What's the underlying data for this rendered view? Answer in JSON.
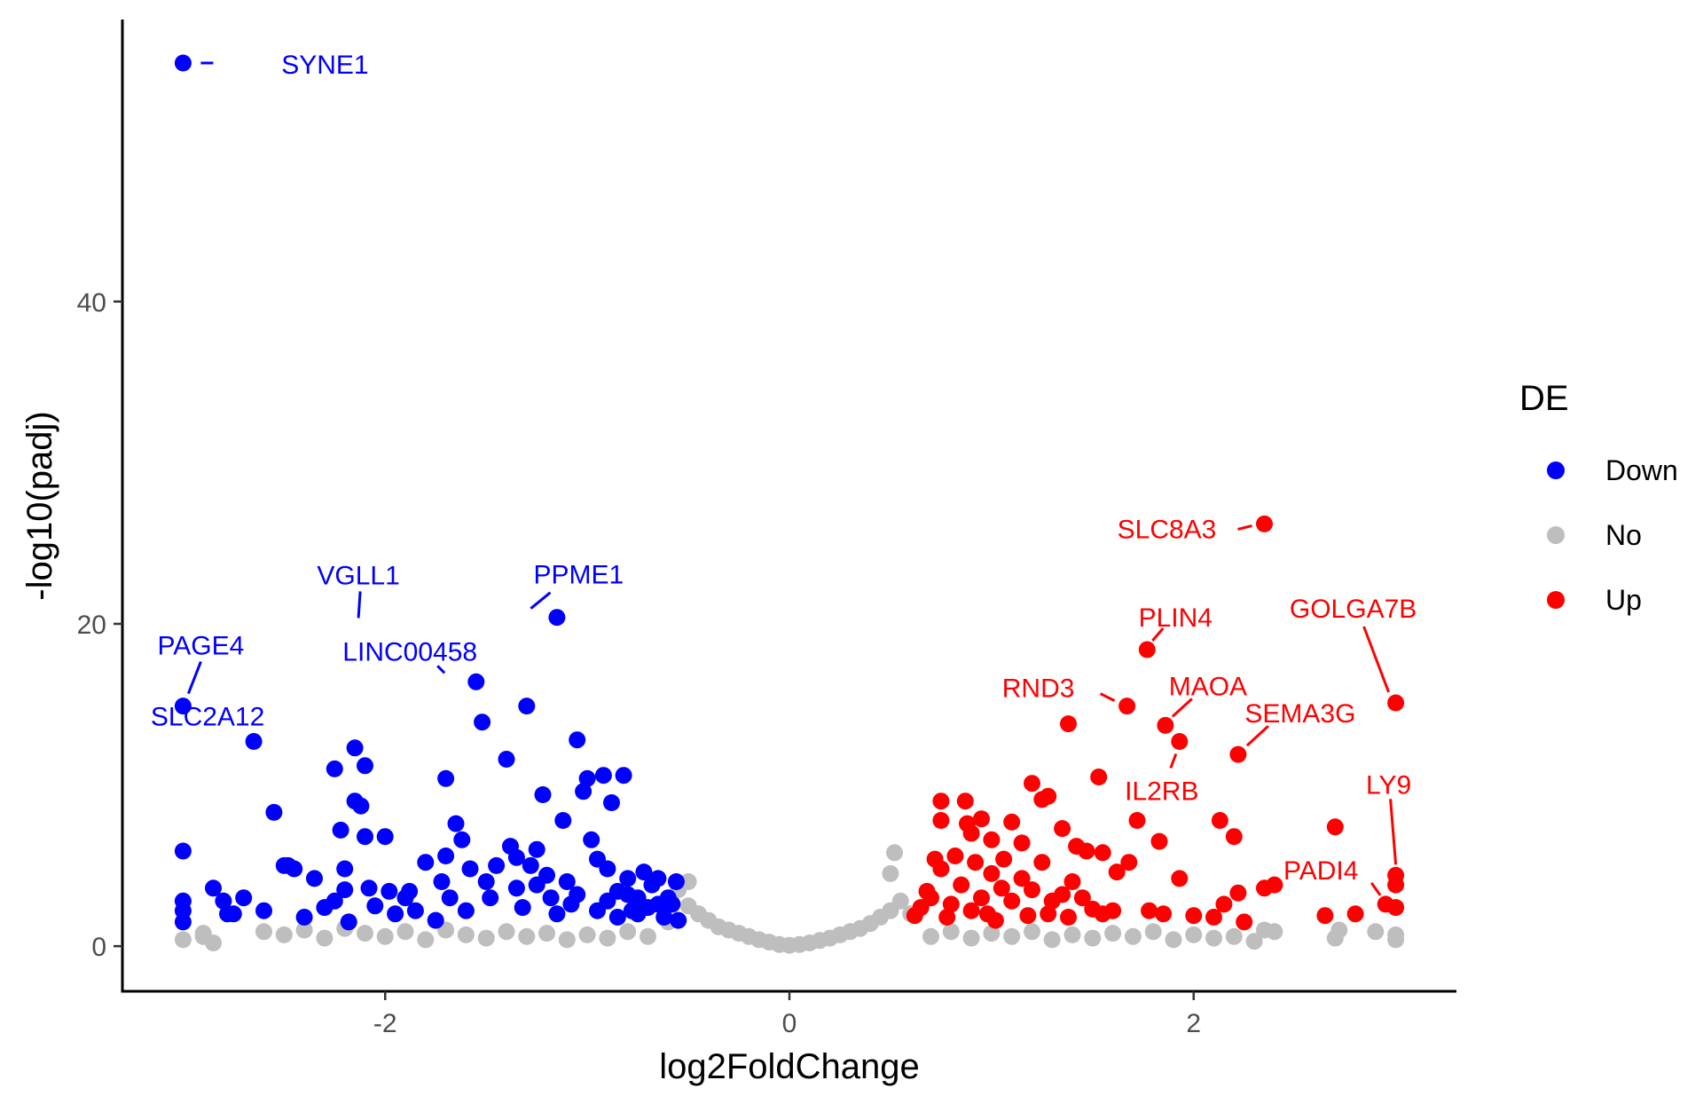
{
  "chart_data": {
    "type": "scatter",
    "xlabel": "log2FoldChange",
    "ylabel": "-log10(padj)",
    "xlim": [
      -3.3,
      3.3
    ],
    "ylim": [
      -2.8,
      57.5
    ],
    "x_ticks": [
      {
        "value": -2,
        "label": "-2"
      },
      {
        "value": 0,
        "label": "0"
      },
      {
        "value": 2,
        "label": "2"
      }
    ],
    "y_ticks": [
      {
        "value": 0,
        "label": "0"
      },
      {
        "value": 20,
        "label": "20"
      },
      {
        "value": 40,
        "label": "40"
      }
    ],
    "grid": false,
    "legend": {
      "title": "DE",
      "position": "right",
      "items": [
        {
          "name": "Down",
          "color": "#0000ff"
        },
        {
          "name": "No",
          "color": "#bebebe"
        },
        {
          "name": "Up",
          "color": "#ff0000"
        }
      ]
    },
    "series": [
      {
        "name": "No",
        "color": "#bebebe",
        "points": [
          [
            -3.0,
            0.4
          ],
          [
            -2.9,
            0.6
          ],
          [
            -2.9,
            0.8
          ],
          [
            -2.85,
            0.2
          ],
          [
            -2.6,
            0.9
          ],
          [
            -2.5,
            0.7
          ],
          [
            -2.4,
            1.0
          ],
          [
            -2.3,
            0.5
          ],
          [
            -2.2,
            1.1
          ],
          [
            -2.1,
            0.8
          ],
          [
            -2.0,
            0.6
          ],
          [
            -1.9,
            0.9
          ],
          [
            -1.8,
            0.4
          ],
          [
            -1.7,
            1.0
          ],
          [
            -1.6,
            0.7
          ],
          [
            -1.5,
            0.5
          ],
          [
            -1.4,
            0.9
          ],
          [
            -1.3,
            0.6
          ],
          [
            -1.2,
            0.8
          ],
          [
            -1.1,
            0.4
          ],
          [
            -1.0,
            0.7
          ],
          [
            -0.9,
            0.5
          ],
          [
            -0.8,
            0.9
          ],
          [
            -0.7,
            0.6
          ],
          [
            -0.6,
            1.5
          ],
          [
            -0.55,
            3.5
          ],
          [
            -0.5,
            4.0
          ],
          [
            -0.5,
            2.5
          ],
          [
            -0.45,
            2.0
          ],
          [
            -0.4,
            1.6
          ],
          [
            -0.35,
            1.2
          ],
          [
            -0.3,
            1.0
          ],
          [
            -0.25,
            0.8
          ],
          [
            -0.2,
            0.6
          ],
          [
            -0.15,
            0.4
          ],
          [
            -0.1,
            0.25
          ],
          [
            -0.05,
            0.1
          ],
          [
            0.0,
            0.05
          ],
          [
            0.05,
            0.1
          ],
          [
            0.1,
            0.2
          ],
          [
            0.15,
            0.35
          ],
          [
            0.2,
            0.5
          ],
          [
            0.25,
            0.7
          ],
          [
            0.3,
            0.9
          ],
          [
            0.35,
            1.1
          ],
          [
            0.4,
            1.4
          ],
          [
            0.45,
            1.8
          ],
          [
            0.5,
            2.2
          ],
          [
            0.5,
            4.5
          ],
          [
            0.52,
            5.8
          ],
          [
            0.55,
            2.8
          ],
          [
            0.6,
            2.0
          ],
          [
            0.7,
            0.6
          ],
          [
            0.8,
            0.9
          ],
          [
            0.9,
            0.5
          ],
          [
            1.0,
            0.8
          ],
          [
            1.1,
            0.6
          ],
          [
            1.2,
            0.9
          ],
          [
            1.3,
            0.4
          ],
          [
            1.4,
            0.7
          ],
          [
            1.5,
            0.5
          ],
          [
            1.6,
            0.8
          ],
          [
            1.7,
            0.6
          ],
          [
            1.8,
            0.9
          ],
          [
            1.9,
            0.4
          ],
          [
            2.0,
            0.7
          ],
          [
            2.1,
            0.5
          ],
          [
            2.2,
            0.6
          ],
          [
            2.3,
            0.3
          ],
          [
            2.35,
            1.0
          ],
          [
            2.4,
            0.9
          ],
          [
            2.7,
            0.5
          ],
          [
            2.72,
            1.0
          ],
          [
            2.9,
            0.9
          ],
          [
            3.0,
            0.4
          ],
          [
            3.0,
            0.7
          ]
        ]
      },
      {
        "name": "Down",
        "color": "#0000ff",
        "points": [
          [
            -3.0,
            54.8
          ],
          [
            -3.0,
            14.9
          ],
          [
            -3.0,
            5.9
          ],
          [
            -3.0,
            2.8
          ],
          [
            -3.0,
            2.2
          ],
          [
            -3.0,
            1.5
          ],
          [
            -2.85,
            3.6
          ],
          [
            -2.8,
            2.8
          ],
          [
            -2.78,
            2.0
          ],
          [
            -2.75,
            2.0
          ],
          [
            -2.7,
            3.0
          ],
          [
            -2.65,
            12.7
          ],
          [
            -2.6,
            2.2
          ],
          [
            -2.55,
            8.3
          ],
          [
            -2.5,
            5.0
          ],
          [
            -2.48,
            5.0
          ],
          [
            -2.45,
            4.8
          ],
          [
            -2.4,
            1.8
          ],
          [
            -2.35,
            4.2
          ],
          [
            -2.3,
            2.4
          ],
          [
            -2.25,
            11.0
          ],
          [
            -2.25,
            2.8
          ],
          [
            -2.22,
            7.2
          ],
          [
            -2.2,
            3.5
          ],
          [
            -2.2,
            4.8
          ],
          [
            -2.18,
            1.5
          ],
          [
            -2.15,
            12.3
          ],
          [
            -2.15,
            9.0
          ],
          [
            -2.12,
            8.7
          ],
          [
            -2.1,
            11.2
          ],
          [
            -2.1,
            6.8
          ],
          [
            -2.08,
            3.6
          ],
          [
            -2.05,
            2.5
          ],
          [
            -2.0,
            6.8
          ],
          [
            -1.98,
            3.4
          ],
          [
            -1.95,
            2.0
          ],
          [
            -1.9,
            3.0
          ],
          [
            -1.88,
            3.4
          ],
          [
            -1.85,
            2.2
          ],
          [
            -1.8,
            5.2
          ],
          [
            -1.75,
            1.6
          ],
          [
            -1.72,
            4.0
          ],
          [
            -1.7,
            10.4
          ],
          [
            -1.7,
            5.6
          ],
          [
            -1.68,
            3.0
          ],
          [
            -1.65,
            7.6
          ],
          [
            -1.62,
            6.6
          ],
          [
            -1.6,
            2.2
          ],
          [
            -1.58,
            4.8
          ],
          [
            -1.55,
            16.4
          ],
          [
            -1.52,
            13.9
          ],
          [
            -1.5,
            4.0
          ],
          [
            -1.48,
            3.0
          ],
          [
            -1.45,
            5.0
          ],
          [
            -1.4,
            11.6
          ],
          [
            -1.38,
            6.2
          ],
          [
            -1.35,
            3.6
          ],
          [
            -1.32,
            2.4
          ],
          [
            -1.3,
            14.9
          ],
          [
            -1.28,
            5.0
          ],
          [
            -1.25,
            6.0
          ],
          [
            -1.22,
            9.4
          ],
          [
            -1.2,
            4.4
          ],
          [
            -1.18,
            3.0
          ],
          [
            -1.15,
            20.4
          ],
          [
            -1.12,
            7.8
          ],
          [
            -1.1,
            4.0
          ],
          [
            -1.08,
            2.6
          ],
          [
            -1.05,
            12.8
          ],
          [
            -1.02,
            9.6
          ],
          [
            -1.0,
            10.4
          ],
          [
            -0.98,
            6.6
          ],
          [
            -0.95,
            5.4
          ],
          [
            -0.92,
            10.6
          ],
          [
            -0.9,
            2.8
          ],
          [
            -0.88,
            8.9
          ],
          [
            -0.85,
            3.4
          ],
          [
            -0.82,
            10.6
          ],
          [
            -0.8,
            4.2
          ],
          [
            -0.78,
            2.2
          ],
          [
            -0.75,
            3.0
          ],
          [
            -0.72,
            4.6
          ],
          [
            -0.7,
            2.4
          ],
          [
            -0.68,
            3.8
          ],
          [
            -0.65,
            4.2
          ],
          [
            -0.62,
            1.8
          ],
          [
            -0.6,
            3.0
          ],
          [
            -0.58,
            2.6
          ],
          [
            -0.56,
            4.0
          ],
          [
            -0.55,
            1.6
          ],
          [
            -1.35,
            5.5
          ],
          [
            -1.25,
            3.8
          ],
          [
            -1.15,
            2.0
          ],
          [
            -1.05,
            3.2
          ],
          [
            -0.95,
            2.2
          ],
          [
            -0.85,
            1.8
          ],
          [
            -0.75,
            2.0
          ],
          [
            -0.65,
            2.6
          ],
          [
            -0.9,
            4.8
          ],
          [
            -0.8,
            3.2
          ]
        ]
      },
      {
        "name": "Up",
        "color": "#ff0000",
        "points": [
          [
            2.35,
            26.2
          ],
          [
            1.77,
            18.4
          ],
          [
            3.0,
            15.1
          ],
          [
            1.67,
            14.9
          ],
          [
            1.38,
            13.8
          ],
          [
            1.86,
            13.7
          ],
          [
            1.93,
            12.7
          ],
          [
            2.22,
            11.9
          ],
          [
            1.53,
            10.5
          ],
          [
            1.2,
            10.1
          ],
          [
            1.25,
            9.1
          ],
          [
            0.75,
            9.0
          ],
          [
            0.87,
            9.0
          ],
          [
            1.28,
            9.3
          ],
          [
            0.95,
            7.9
          ],
          [
            1.1,
            7.7
          ],
          [
            0.75,
            7.8
          ],
          [
            0.88,
            7.6
          ],
          [
            1.35,
            7.3
          ],
          [
            2.13,
            7.8
          ],
          [
            1.72,
            7.8
          ],
          [
            2.7,
            7.4
          ],
          [
            2.2,
            6.8
          ],
          [
            1.83,
            6.5
          ],
          [
            0.9,
            7.0
          ],
          [
            1.0,
            6.6
          ],
          [
            1.15,
            6.4
          ],
          [
            1.42,
            6.2
          ],
          [
            1.47,
            5.9
          ],
          [
            1.06,
            5.4
          ],
          [
            1.25,
            5.2
          ],
          [
            0.82,
            5.6
          ],
          [
            0.92,
            5.2
          ],
          [
            1.62,
            4.6
          ],
          [
            1.55,
            5.8
          ],
          [
            1.68,
            5.2
          ],
          [
            1.93,
            4.2
          ],
          [
            2.4,
            3.8
          ],
          [
            2.35,
            3.6
          ],
          [
            3.0,
            4.4
          ],
          [
            3.0,
            3.8
          ],
          [
            2.95,
            2.6
          ],
          [
            3.0,
            2.4
          ],
          [
            2.8,
            2.0
          ],
          [
            2.65,
            1.9
          ],
          [
            2.25,
            1.5
          ],
          [
            2.15,
            2.6
          ],
          [
            2.1,
            1.8
          ],
          [
            2.0,
            1.9
          ],
          [
            1.85,
            2.0
          ],
          [
            1.78,
            2.2
          ],
          [
            1.6,
            2.2
          ],
          [
            1.55,
            2.0
          ],
          [
            1.5,
            2.3
          ],
          [
            1.45,
            3.0
          ],
          [
            1.4,
            4.0
          ],
          [
            1.35,
            3.2
          ],
          [
            1.3,
            2.8
          ],
          [
            1.2,
            3.5
          ],
          [
            1.15,
            4.2
          ],
          [
            1.1,
            2.8
          ],
          [
            1.05,
            3.6
          ],
          [
            1.0,
            4.5
          ],
          [
            0.95,
            3.0
          ],
          [
            0.9,
            2.2
          ],
          [
            0.85,
            3.8
          ],
          [
            0.8,
            2.6
          ],
          [
            0.75,
            4.8
          ],
          [
            0.7,
            3.0
          ],
          [
            0.65,
            2.4
          ],
          [
            0.62,
            1.9
          ],
          [
            0.68,
            3.4
          ],
          [
            0.78,
            1.8
          ],
          [
            0.98,
            2.0
          ],
          [
            1.18,
            1.9
          ],
          [
            1.28,
            2.0
          ],
          [
            1.38,
            1.8
          ],
          [
            0.72,
            5.4
          ],
          [
            1.02,
            1.6
          ],
          [
            2.22,
            3.3
          ]
        ]
      }
    ],
    "annotations": [
      {
        "label": "SYNE1",
        "x": -3.0,
        "y": 54.8,
        "color": "#0000ff"
      },
      {
        "label": "VGLL1",
        "x": -2.15,
        "y": 19.7,
        "color": "#0000ff"
      },
      {
        "label": "PPME1",
        "x": -1.35,
        "y": 20.4,
        "color": "#0000ff"
      },
      {
        "label": "PAGE4",
        "x": -3.0,
        "y": 14.9,
        "color": "#0000ff"
      },
      {
        "label": "LINC00458",
        "x": -1.68,
        "y": 16.4,
        "color": "#0000ff"
      },
      {
        "label": "SLC2A12",
        "x": -2.65,
        "y": 12.7,
        "color": "#0000ff"
      },
      {
        "label": "SLC8A3",
        "x": 2.35,
        "y": 26.2,
        "color": "#ff0000"
      },
      {
        "label": "PLIN4",
        "x": 1.77,
        "y": 18.4,
        "color": "#ff0000"
      },
      {
        "label": "GOLGA7B",
        "x": 3.0,
        "y": 15.1,
        "color": "#ff0000"
      },
      {
        "label": "RND3",
        "x": 1.67,
        "y": 14.9,
        "color": "#ff0000"
      },
      {
        "label": "MAOA",
        "x": 1.86,
        "y": 13.7,
        "color": "#ff0000"
      },
      {
        "label": "SEMA3G",
        "x": 2.22,
        "y": 11.9,
        "color": "#ff0000"
      },
      {
        "label": "IL2RB",
        "x": 1.93,
        "y": 12.7,
        "color": "#ff0000"
      },
      {
        "label": "LY9",
        "x": 3.0,
        "y": 4.4,
        "color": "#ff0000"
      },
      {
        "label": "PADI4",
        "x": 2.95,
        "y": 2.6,
        "color": "#ff0000"
      }
    ]
  }
}
